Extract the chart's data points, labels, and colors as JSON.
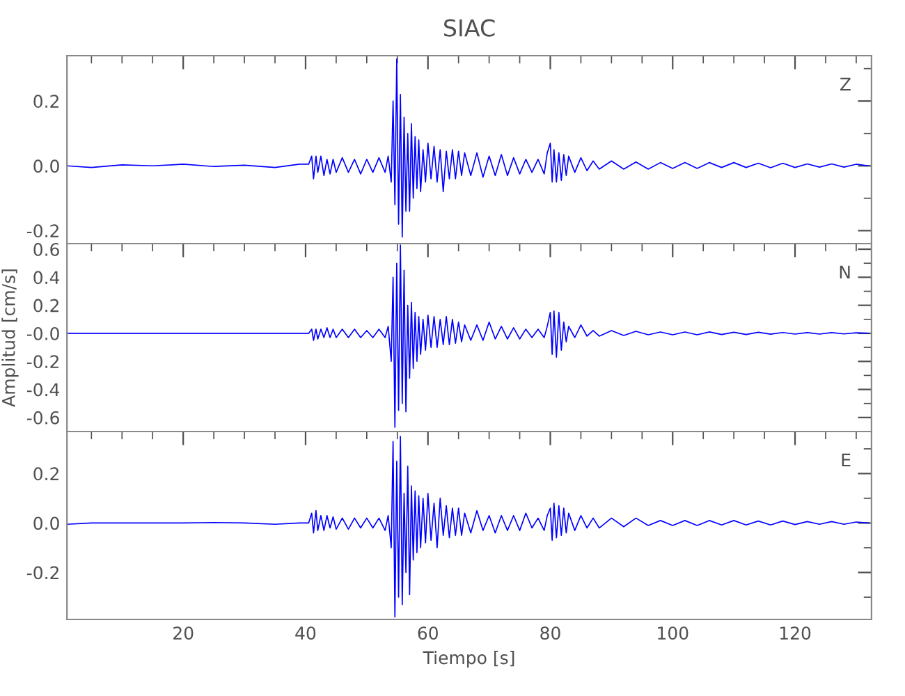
{
  "chart_data": [
    {
      "type": "line",
      "title": "SIAC",
      "annotations": [
        "Z"
      ],
      "tick_labels": "y",
      "x": [
        1,
        5,
        10,
        15,
        20,
        25,
        30,
        35,
        39,
        40.5,
        41,
        41.3,
        41.7,
        42,
        42.5,
        43,
        43.5,
        44,
        44.5,
        45,
        46,
        47,
        48,
        49,
        50,
        51,
        52,
        53,
        53.5,
        54,
        54.3,
        54.6,
        54.9,
        55.2,
        55.5,
        55.8,
        56.1,
        56.4,
        56.7,
        57,
        57.3,
        57.6,
        57.9,
        58.2,
        58.5,
        58.8,
        59.2,
        59.6,
        60,
        60.5,
        61,
        61.5,
        62,
        62.5,
        63,
        63.5,
        64,
        64.5,
        65,
        65.5,
        66,
        67,
        68,
        69,
        70,
        71,
        72,
        73,
        74,
        75,
        76,
        77,
        78,
        79,
        79.5,
        80,
        80.3,
        80.6,
        81,
        81.4,
        81.8,
        82.2,
        82.6,
        83,
        84,
        85,
        86,
        87,
        88,
        90,
        92,
        94,
        96,
        98,
        100,
        102,
        104,
        106,
        108,
        110,
        112,
        114,
        116,
        118,
        120,
        122,
        124,
        126,
        128,
        130,
        132
      ],
      "series": [
        {
          "color": "#0000ff",
          "values": [
            0.0,
            -0.005,
            0.003,
            0.0,
            0.005,
            -0.002,
            0.002,
            -0.005,
            0.005,
            0.005,
            0.03,
            -0.04,
            0.03,
            -0.02,
            0.03,
            -0.03,
            0.02,
            -0.025,
            0.02,
            -0.02,
            0.025,
            -0.02,
            0.02,
            -0.025,
            0.02,
            -0.02,
            0.025,
            -0.02,
            0.03,
            -0.05,
            0.2,
            -0.12,
            0.33,
            -0.18,
            0.22,
            -0.22,
            0.15,
            -0.14,
            0.1,
            -0.14,
            0.13,
            -0.1,
            0.09,
            -0.07,
            0.08,
            -0.08,
            0.05,
            -0.05,
            0.07,
            -0.04,
            0.06,
            -0.05,
            0.05,
            -0.08,
            0.045,
            -0.04,
            0.05,
            -0.04,
            0.045,
            -0.03,
            0.04,
            -0.03,
            0.04,
            -0.035,
            0.03,
            -0.03,
            0.035,
            -0.03,
            0.025,
            -0.025,
            0.02,
            -0.02,
            0.02,
            -0.025,
            0.04,
            0.07,
            -0.05,
            0.05,
            -0.05,
            0.04,
            -0.045,
            0.035,
            -0.03,
            0.03,
            -0.02,
            0.025,
            -0.015,
            0.015,
            -0.01,
            0.015,
            -0.01,
            0.012,
            -0.01,
            0.01,
            -0.008,
            0.01,
            -0.008,
            0.01,
            -0.005,
            0.01,
            -0.005,
            0.008,
            -0.006,
            0.008,
            -0.005,
            0.006,
            -0.004,
            0.006,
            -0.004,
            0.005,
            0.0
          ]
        }
      ],
      "xlim": [
        1,
        132.5
      ],
      "xticks": [
        20,
        40,
        60,
        80,
        100,
        120
      ],
      "ylim": [
        -0.24,
        0.34
      ],
      "yticks": [
        {
          "value": -0.2,
          "label": "-0.2"
        },
        {
          "value": 0.0,
          "label": "0.0"
        },
        {
          "value": 0.2,
          "label": "0.2"
        }
      ]
    },
    {
      "type": "line",
      "ylabel": "Amplitud [cm/s]",
      "annotations": [
        "N"
      ],
      "tick_labels": "y",
      "x": [
        1,
        5,
        10,
        15,
        20,
        25,
        30,
        35,
        39,
        40.5,
        41,
        41.3,
        41.7,
        42,
        42.5,
        43,
        43.5,
        44,
        44.5,
        45,
        46,
        47,
        48,
        49,
        50,
        51,
        52,
        53,
        53.5,
        54,
        54.3,
        54.6,
        54.9,
        55.2,
        55.5,
        55.8,
        56.1,
        56.4,
        56.7,
        57,
        57.3,
        57.6,
        57.9,
        58.2,
        58.5,
        58.8,
        59.2,
        59.6,
        60,
        60.5,
        61,
        61.5,
        62,
        62.5,
        63,
        63.5,
        64,
        64.5,
        65,
        65.5,
        66,
        67,
        68,
        69,
        70,
        71,
        72,
        73,
        74,
        75,
        76,
        77,
        78,
        79,
        79.5,
        80,
        80.3,
        80.6,
        81,
        81.4,
        81.8,
        82.2,
        82.6,
        83,
        84,
        85,
        86,
        87,
        88,
        90,
        92,
        94,
        96,
        98,
        100,
        102,
        104,
        106,
        108,
        110,
        112,
        114,
        116,
        118,
        120,
        122,
        124,
        126,
        128,
        130,
        132
      ],
      "series": [
        {
          "color": "#0000ff",
          "values": [
            0,
            0,
            0,
            0,
            0,
            0,
            0,
            0,
            0,
            0,
            0.03,
            -0.05,
            0.03,
            -0.04,
            0.03,
            -0.03,
            0.04,
            -0.03,
            0.03,
            -0.03,
            0.03,
            -0.03,
            0.03,
            -0.03,
            0.02,
            -0.03,
            0.03,
            -0.03,
            0.05,
            -0.2,
            0.4,
            -0.67,
            0.5,
            -0.55,
            0.63,
            -0.5,
            0.45,
            -0.56,
            0.2,
            -0.32,
            0.22,
            -0.25,
            0.15,
            -0.2,
            0.12,
            -0.15,
            0.1,
            -0.12,
            0.13,
            -0.1,
            0.12,
            -0.1,
            0.1,
            -0.08,
            0.12,
            -0.08,
            0.1,
            -0.07,
            0.08,
            -0.06,
            0.06,
            -0.05,
            0.06,
            -0.05,
            0.08,
            -0.04,
            0.05,
            -0.04,
            0.04,
            -0.04,
            0.03,
            -0.03,
            0.03,
            -0.03,
            0.05,
            0.15,
            -0.15,
            0.16,
            -0.17,
            0.15,
            -0.12,
            0.08,
            -0.06,
            0.05,
            -0.03,
            0.06,
            -0.02,
            0.02,
            -0.02,
            0.02,
            -0.015,
            0.015,
            -0.01,
            0.01,
            -0.01,
            0.01,
            -0.01,
            0.01,
            -0.008,
            0.008,
            -0.008,
            0.008,
            -0.006,
            0.006,
            -0.005,
            0.005,
            -0.005,
            0.005,
            -0.004,
            0.004,
            0
          ]
        }
      ],
      "xlim": [
        1,
        132.5
      ],
      "xticks": [
        20,
        40,
        60,
        80,
        100,
        120
      ],
      "ylim": [
        -0.7,
        0.64
      ],
      "yticks": [
        {
          "value": -0.6,
          "label": "-0.6"
        },
        {
          "value": -0.4,
          "label": "-0.4"
        },
        {
          "value": -0.2,
          "label": "-0.2"
        },
        {
          "value": 0.0,
          "label": "-0.0"
        },
        {
          "value": 0.2,
          "label": "0.2"
        },
        {
          "value": 0.4,
          "label": "0.4"
        },
        {
          "value": 0.6,
          "label": "0.6"
        }
      ]
    },
    {
      "type": "line",
      "xlabel": "Tiempo [s]",
      "annotations": [
        "E"
      ],
      "x": [
        1,
        5,
        10,
        15,
        20,
        25,
        30,
        35,
        39,
        40.5,
        41,
        41.3,
        41.7,
        42,
        42.5,
        43,
        43.5,
        44,
        44.5,
        45,
        46,
        47,
        48,
        49,
        50,
        51,
        52,
        53,
        53.5,
        54,
        54.3,
        54.6,
        54.9,
        55.2,
        55.5,
        55.8,
        56.1,
        56.4,
        56.7,
        57,
        57.3,
        57.6,
        57.9,
        58.2,
        58.5,
        58.8,
        59.2,
        59.6,
        60,
        60.5,
        61,
        61.5,
        62,
        62.5,
        63,
        63.5,
        64,
        64.5,
        65,
        65.5,
        66,
        67,
        68,
        69,
        70,
        71,
        72,
        73,
        74,
        75,
        76,
        77,
        78,
        79,
        79.5,
        80,
        80.3,
        80.6,
        81,
        81.4,
        81.8,
        82.2,
        82.6,
        83,
        84,
        85,
        86,
        87,
        88,
        90,
        92,
        94,
        96,
        98,
        100,
        102,
        104,
        106,
        108,
        110,
        112,
        114,
        116,
        118,
        120,
        122,
        124,
        126,
        128,
        130,
        132
      ],
      "series": [
        {
          "color": "#0000ff",
          "values": [
            -0.005,
            0,
            0,
            0,
            0,
            0.002,
            0,
            -0.005,
            0,
            0,
            0.04,
            -0.04,
            0.05,
            -0.03,
            0.03,
            -0.03,
            0.03,
            -0.02,
            0.025,
            -0.025,
            0.02,
            -0.025,
            0.02,
            -0.02,
            0.02,
            -0.02,
            0.02,
            -0.03,
            0.03,
            -0.1,
            0.33,
            -0.38,
            0.25,
            -0.3,
            0.35,
            -0.33,
            0.12,
            -0.2,
            0.23,
            -0.29,
            0.15,
            -0.15,
            0.13,
            -0.12,
            0.11,
            -0.1,
            0.1,
            -0.08,
            0.12,
            -0.07,
            0.08,
            -0.1,
            0.1,
            -0.05,
            0.07,
            -0.06,
            0.06,
            -0.05,
            0.06,
            -0.05,
            0.04,
            -0.04,
            0.05,
            -0.03,
            0.03,
            -0.04,
            0.03,
            -0.03,
            0.03,
            -0.03,
            0.04,
            -0.02,
            0.02,
            -0.03,
            0.03,
            0.06,
            -0.07,
            0.08,
            -0.06,
            0.07,
            -0.05,
            0.06,
            -0.04,
            0.04,
            -0.03,
            0.03,
            -0.02,
            0.02,
            -0.02,
            0.02,
            -0.015,
            0.02,
            -0.01,
            0.01,
            -0.01,
            0.01,
            -0.01,
            0.01,
            -0.008,
            0.01,
            -0.008,
            0.008,
            -0.008,
            0.008,
            -0.006,
            0.006,
            -0.005,
            0.006,
            -0.005,
            0.004,
            0
          ]
        }
      ],
      "xlim": [
        1,
        132.5
      ],
      "xticks": [
        20,
        40,
        60,
        80,
        100,
        120
      ],
      "ylim": [
        -0.39,
        0.37
      ],
      "yticks": [
        {
          "value": -0.2,
          "label": "-0.2"
        },
        {
          "value": 0.0,
          "label": "0.0"
        },
        {
          "value": 0.2,
          "label": "0.2"
        }
      ]
    }
  ]
}
